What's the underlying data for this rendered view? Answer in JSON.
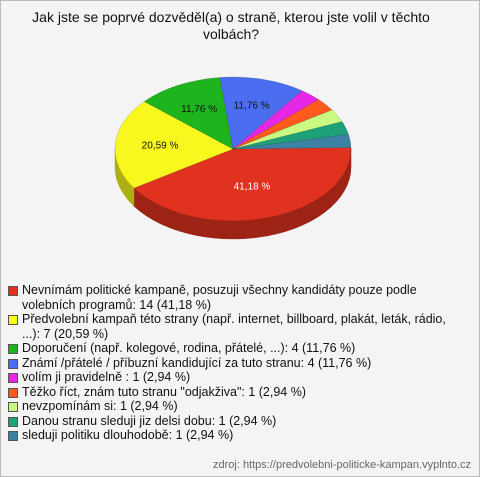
{
  "chart_data": {
    "type": "pie",
    "title": "Jak jste se poprvé dozvěděl(a) o straně, kterou jste volil v těchto volbách?",
    "categories": [
      "Nevnímám politické kampaně, posuzuji všechny kandidáty pouze podle volebních programů: 14 (41,18 %)",
      "Předvolební kampaň této strany (např. internet, billboard, plakát, leták, rádio, ...): 7 (20,59 %)",
      "Doporučení (např. kolegové, rodina, přátelé, ...): 4 (11,76 %)",
      "Známí /přátelé / příbuzní kandidující za tuto stranu: 4 (11,76 %)",
      "volím ji pravidelně : 1 (2,94 %)",
      "Těžko říct, znám tuto stranu \"odjakživa\": 1 (2,94 %)",
      "nevzpomínám si: 1 (2,94 %)",
      "Danou stranu sleduji jiz delsi dobu: 1 (2,94 %)",
      "sleduji politiku dlouhodobě: 1 (2,94 %)"
    ],
    "values": [
      41.18,
      20.59,
      11.76,
      11.76,
      2.94,
      2.94,
      2.94,
      2.94,
      2.94
    ],
    "value_labels": [
      "41,18 %",
      "20,59 %",
      "11,76 %",
      "11,76 %",
      null,
      null,
      null,
      null,
      null
    ],
    "colors": [
      "#e0321e",
      "#f8f81e",
      "#1eb41e",
      "#4b6ef0",
      "#e628e6",
      "#ff5a1e",
      "#c8fa82",
      "#1ea078",
      "#3c82a5"
    ],
    "source": "zdroj: https://predvolebni-politicke-kampan.vyplnto.cz"
  }
}
